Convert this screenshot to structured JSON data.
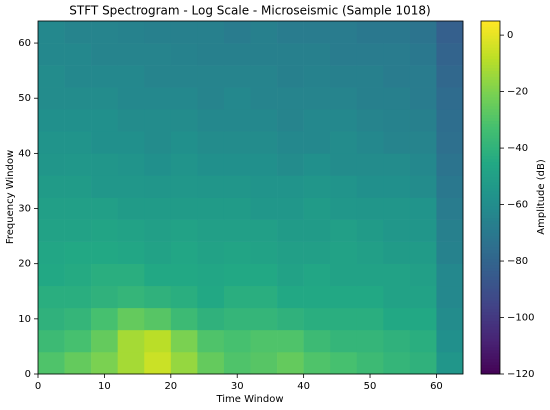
{
  "chart_data": {
    "type": "heatmap",
    "title": "STFT Spectrogram - Log Scale - Microseismic (Sample 1018)",
    "x_label": "Time Window",
    "y_label": "Frequency Window",
    "colorbar_label": "Amplitude (dB)",
    "colormap": "viridis",
    "x_edges": [
      0,
      4,
      8,
      12,
      16,
      20,
      24,
      28,
      32,
      36,
      40,
      44,
      48,
      52,
      56,
      60,
      64
    ],
    "y_edges": [
      0,
      4,
      8,
      12,
      16,
      20,
      24,
      28,
      32,
      36,
      40,
      44,
      48,
      52,
      56,
      60,
      64
    ],
    "z": [
      [
        -30,
        -25,
        -20,
        -12,
        -5,
        -15,
        -25,
        -30,
        -28,
        -25,
        -30,
        -32,
        -35,
        -38,
        -40,
        -55
      ],
      [
        -35,
        -32,
        -25,
        -12,
        -8,
        -20,
        -30,
        -32,
        -30,
        -30,
        -35,
        -38,
        -38,
        -40,
        -42,
        -58
      ],
      [
        -40,
        -38,
        -32,
        -25,
        -28,
        -35,
        -40,
        -38,
        -38,
        -40,
        -42,
        -42,
        -42,
        -45,
        -45,
        -60
      ],
      [
        -42,
        -42,
        -40,
        -38,
        -40,
        -42,
        -45,
        -42,
        -42,
        -45,
        -45,
        -45,
        -45,
        -48,
        -48,
        -62
      ],
      [
        -45,
        -44,
        -42,
        -42,
        -45,
        -45,
        -46,
        -45,
        -45,
        -48,
        -46,
        -48,
        -48,
        -48,
        -50,
        -62
      ],
      [
        -46,
        -45,
        -45,
        -46,
        -48,
        -46,
        -48,
        -47,
        -48,
        -50,
        -50,
        -48,
        -50,
        -52,
        -52,
        -65
      ],
      [
        -48,
        -48,
        -47,
        -48,
        -50,
        -48,
        -50,
        -50,
        -50,
        -52,
        -52,
        -50,
        -52,
        -54,
        -55,
        -66
      ],
      [
        -50,
        -50,
        -50,
        -52,
        -52,
        -52,
        -52,
        -52,
        -54,
        -54,
        -52,
        -54,
        -55,
        -55,
        -56,
        -68
      ],
      [
        -52,
        -52,
        -54,
        -54,
        -55,
        -54,
        -55,
        -55,
        -56,
        -56,
        -55,
        -56,
        -58,
        -58,
        -60,
        -70
      ],
      [
        -55,
        -54,
        -55,
        -56,
        -58,
        -56,
        -58,
        -58,
        -58,
        -60,
        -58,
        -60,
        -60,
        -60,
        -62,
        -72
      ],
      [
        -56,
        -56,
        -58,
        -58,
        -60,
        -58,
        -60,
        -60,
        -60,
        -62,
        -62,
        -60,
        -62,
        -64,
        -64,
        -74
      ],
      [
        -58,
        -58,
        -58,
        -60,
        -60,
        -60,
        -62,
        -62,
        -62,
        -64,
        -62,
        -62,
        -64,
        -65,
        -66,
        -75
      ],
      [
        -60,
        -60,
        -60,
        -62,
        -62,
        -62,
        -64,
        -62,
        -64,
        -64,
        -64,
        -64,
        -66,
        -66,
        -68,
        -76
      ],
      [
        -60,
        -62,
        -62,
        -62,
        -64,
        -64,
        -64,
        -64,
        -64,
        -66,
        -65,
        -66,
        -66,
        -68,
        -68,
        -78
      ],
      [
        -62,
        -62,
        -64,
        -64,
        -64,
        -65,
        -66,
        -66,
        -66,
        -66,
        -66,
        -68,
        -68,
        -68,
        -70,
        -80
      ],
      [
        -62,
        -64,
        -64,
        -65,
        -66,
        -66,
        -66,
        -68,
        -66,
        -68,
        -68,
        -68,
        -70,
        -70,
        -72,
        -82
      ]
    ],
    "xlim": [
      0,
      64
    ],
    "ylim": [
      0,
      64
    ],
    "xticks": [
      0,
      10,
      20,
      30,
      40,
      50,
      60
    ],
    "yticks": [
      0,
      10,
      20,
      30,
      40,
      50,
      60
    ],
    "clim": [
      -120,
      5
    ],
    "cticks": [
      {
        "value": -120,
        "label": "−120"
      },
      {
        "value": -100,
        "label": "−100"
      },
      {
        "value": -80,
        "label": "−80"
      },
      {
        "value": -60,
        "label": "−60"
      },
      {
        "value": -40,
        "label": "−40"
      },
      {
        "value": -20,
        "label": "−20"
      },
      0
    ]
  }
}
